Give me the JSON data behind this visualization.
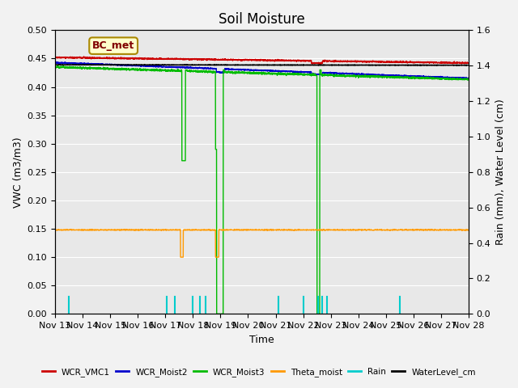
{
  "title": "Soil Moisture",
  "xlabel": "Time",
  "ylabel_left": "VWC (m3/m3)",
  "ylabel_right": "Rain (mm), Water Level (cm)",
  "annotation": "BC_met",
  "ylim_left": [
    0.0,
    0.5
  ],
  "ylim_right": [
    0.0,
    1.6
  ],
  "xtick_labels": [
    "Nov 13",
    "Nov 14",
    "Nov 15",
    "Nov 16",
    "Nov 17",
    "Nov 18",
    "Nov 19",
    "Nov 20",
    "Nov 21",
    "Nov 22",
    "Nov 23",
    "Nov 24",
    "Nov 25",
    "Nov 26",
    "Nov 27",
    "Nov 28"
  ],
  "colors": {
    "WCR_VMC1": "#cc0000",
    "WCR_Moist2": "#0000cc",
    "WCR_Moist3": "#00bb00",
    "Theta_moist": "#ff9900",
    "Rain": "#00cccc",
    "WaterLevel_cm": "#000000"
  },
  "plot_bg": "#e8e8e8",
  "fig_bg": "#f2f2f2",
  "grid_color": "#ffffff"
}
